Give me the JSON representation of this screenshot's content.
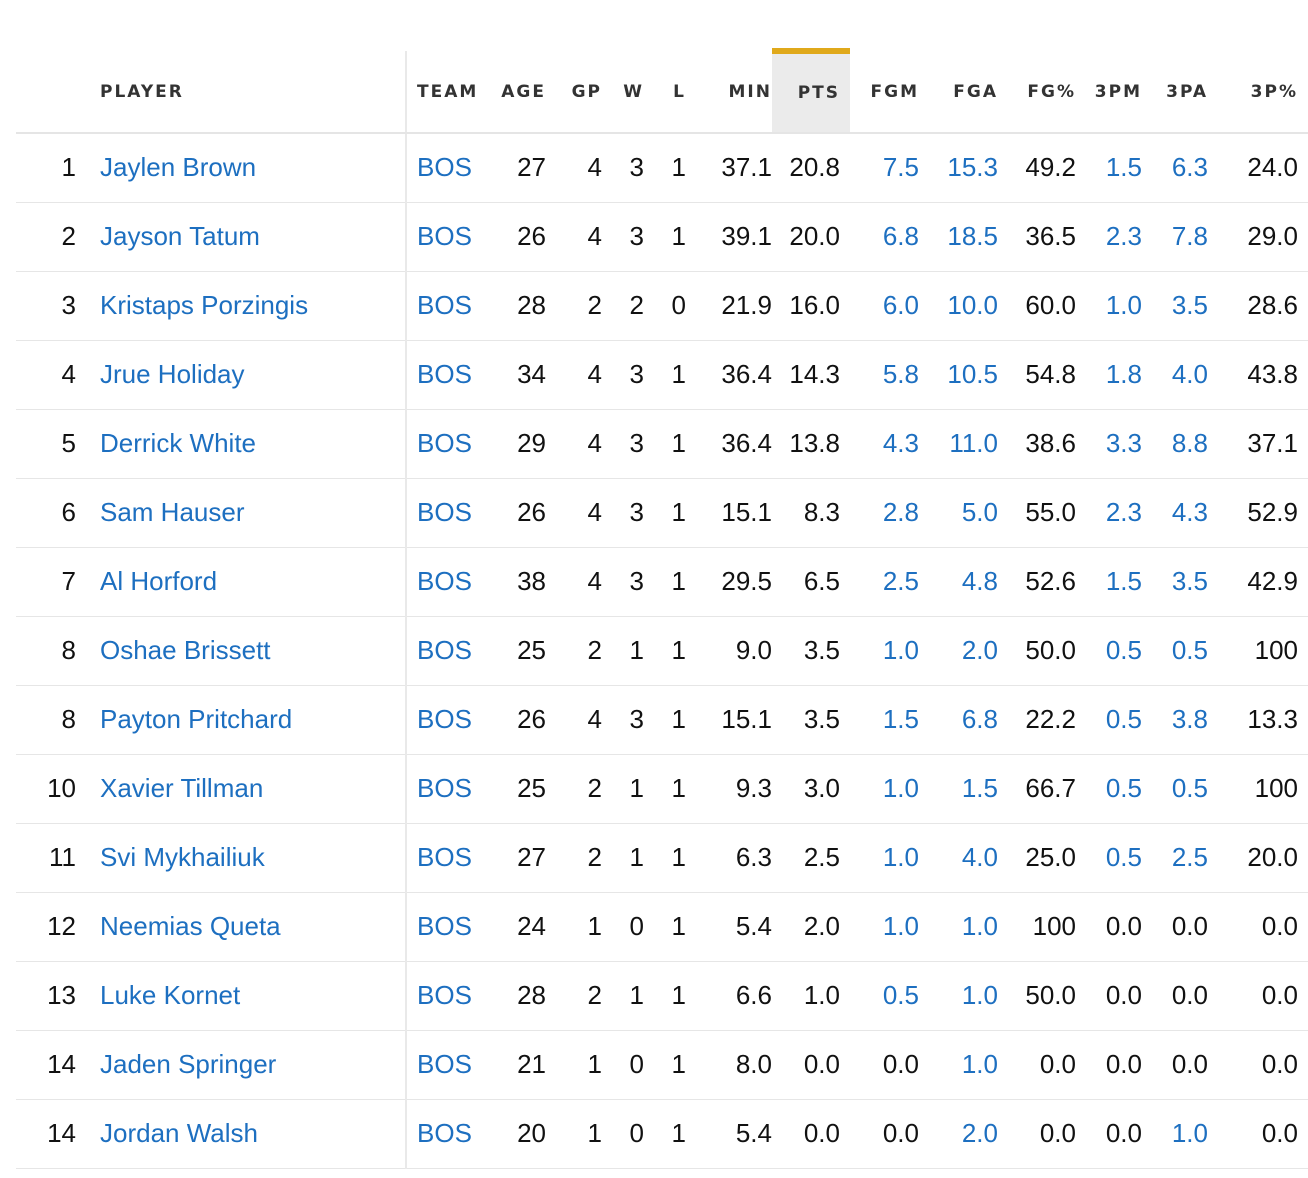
{
  "table": {
    "headers": {
      "player": "PLAYER",
      "team": "TEAM",
      "age": "AGE",
      "gp": "GP",
      "w": "W",
      "l": "L",
      "min": "MIN",
      "pts": "PTS",
      "fgm": "FGM",
      "fga": "FGA",
      "fg_pct": "FG%",
      "tpm": "3PM",
      "tpa": "3PA",
      "tp_pct": "3P%"
    },
    "sorted_column": "PTS",
    "accent_color": "#e0a91b",
    "link_color": "#1d6fc0",
    "rows": [
      {
        "rank": "1",
        "player": "Jaylen Brown",
        "team": "BOS",
        "age": "27",
        "gp": "4",
        "w": "3",
        "l": "1",
        "min": "37.1",
        "pts": "20.8",
        "fgm": "7.5",
        "fga": "15.3",
        "fg_pct": "49.2",
        "tpm": "1.5",
        "tpa": "6.3",
        "tp_pct": "24.0"
      },
      {
        "rank": "2",
        "player": "Jayson Tatum",
        "team": "BOS",
        "age": "26",
        "gp": "4",
        "w": "3",
        "l": "1",
        "min": "39.1",
        "pts": "20.0",
        "fgm": "6.8",
        "fga": "18.5",
        "fg_pct": "36.5",
        "tpm": "2.3",
        "tpa": "7.8",
        "tp_pct": "29.0"
      },
      {
        "rank": "3",
        "player": "Kristaps Porzingis",
        "team": "BOS",
        "age": "28",
        "gp": "2",
        "w": "2",
        "l": "0",
        "min": "21.9",
        "pts": "16.0",
        "fgm": "6.0",
        "fga": "10.0",
        "fg_pct": "60.0",
        "tpm": "1.0",
        "tpa": "3.5",
        "tp_pct": "28.6"
      },
      {
        "rank": "4",
        "player": "Jrue Holiday",
        "team": "BOS",
        "age": "34",
        "gp": "4",
        "w": "3",
        "l": "1",
        "min": "36.4",
        "pts": "14.3",
        "fgm": "5.8",
        "fga": "10.5",
        "fg_pct": "54.8",
        "tpm": "1.8",
        "tpa": "4.0",
        "tp_pct": "43.8"
      },
      {
        "rank": "5",
        "player": "Derrick White",
        "team": "BOS",
        "age": "29",
        "gp": "4",
        "w": "3",
        "l": "1",
        "min": "36.4",
        "pts": "13.8",
        "fgm": "4.3",
        "fga": "11.0",
        "fg_pct": "38.6",
        "tpm": "3.3",
        "tpa": "8.8",
        "tp_pct": "37.1"
      },
      {
        "rank": "6",
        "player": "Sam Hauser",
        "team": "BOS",
        "age": "26",
        "gp": "4",
        "w": "3",
        "l": "1",
        "min": "15.1",
        "pts": "8.3",
        "fgm": "2.8",
        "fga": "5.0",
        "fg_pct": "55.0",
        "tpm": "2.3",
        "tpa": "4.3",
        "tp_pct": "52.9"
      },
      {
        "rank": "7",
        "player": "Al Horford",
        "team": "BOS",
        "age": "38",
        "gp": "4",
        "w": "3",
        "l": "1",
        "min": "29.5",
        "pts": "6.5",
        "fgm": "2.5",
        "fga": "4.8",
        "fg_pct": "52.6",
        "tpm": "1.5",
        "tpa": "3.5",
        "tp_pct": "42.9"
      },
      {
        "rank": "8",
        "player": "Oshae Brissett",
        "team": "BOS",
        "age": "25",
        "gp": "2",
        "w": "1",
        "l": "1",
        "min": "9.0",
        "pts": "3.5",
        "fgm": "1.0",
        "fga": "2.0",
        "fg_pct": "50.0",
        "tpm": "0.5",
        "tpa": "0.5",
        "tp_pct": "100"
      },
      {
        "rank": "8",
        "player": "Payton Pritchard",
        "team": "BOS",
        "age": "26",
        "gp": "4",
        "w": "3",
        "l": "1",
        "min": "15.1",
        "pts": "3.5",
        "fgm": "1.5",
        "fga": "6.8",
        "fg_pct": "22.2",
        "tpm": "0.5",
        "tpa": "3.8",
        "tp_pct": "13.3"
      },
      {
        "rank": "10",
        "player": "Xavier Tillman",
        "team": "BOS",
        "age": "25",
        "gp": "2",
        "w": "1",
        "l": "1",
        "min": "9.3",
        "pts": "3.0",
        "fgm": "1.0",
        "fga": "1.5",
        "fg_pct": "66.7",
        "tpm": "0.5",
        "tpa": "0.5",
        "tp_pct": "100"
      },
      {
        "rank": "11",
        "player": "Svi Mykhailiuk",
        "team": "BOS",
        "age": "27",
        "gp": "2",
        "w": "1",
        "l": "1",
        "min": "6.3",
        "pts": "2.5",
        "fgm": "1.0",
        "fga": "4.0",
        "fg_pct": "25.0",
        "tpm": "0.5",
        "tpa": "2.5",
        "tp_pct": "20.0"
      },
      {
        "rank": "12",
        "player": "Neemias Queta",
        "team": "BOS",
        "age": "24",
        "gp": "1",
        "w": "0",
        "l": "1",
        "min": "5.4",
        "pts": "2.0",
        "fgm": "1.0",
        "fga": "1.0",
        "fg_pct": "100",
        "tpm": "0.0",
        "tpa": "0.0",
        "tp_pct": "0.0"
      },
      {
        "rank": "13",
        "player": "Luke Kornet",
        "team": "BOS",
        "age": "28",
        "gp": "2",
        "w": "1",
        "l": "1",
        "min": "6.6",
        "pts": "1.0",
        "fgm": "0.5",
        "fga": "1.0",
        "fg_pct": "50.0",
        "tpm": "0.0",
        "tpa": "0.0",
        "tp_pct": "0.0"
      },
      {
        "rank": "14",
        "player": "Jaden Springer",
        "team": "BOS",
        "age": "21",
        "gp": "1",
        "w": "0",
        "l": "1",
        "min": "8.0",
        "pts": "0.0",
        "fgm": "0.0",
        "fga": "1.0",
        "fg_pct": "0.0",
        "tpm": "0.0",
        "tpa": "0.0",
        "tp_pct": "0.0"
      },
      {
        "rank": "14",
        "player": "Jordan Walsh",
        "team": "BOS",
        "age": "20",
        "gp": "1",
        "w": "0",
        "l": "1",
        "min": "5.4",
        "pts": "0.0",
        "fgm": "0.0",
        "fga": "2.0",
        "fg_pct": "0.0",
        "tpm": "0.0",
        "tpa": "1.0",
        "tp_pct": "0.0"
      }
    ]
  }
}
